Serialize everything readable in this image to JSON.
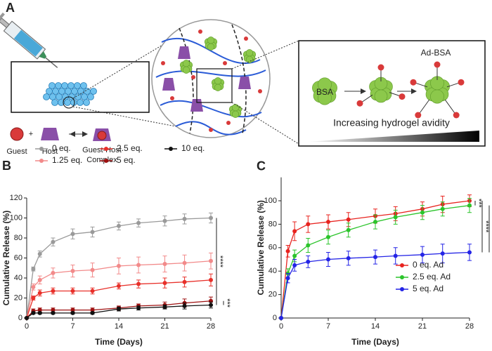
{
  "schematic": {
    "panel_label": "A",
    "guest": "Guest",
    "plus": "+",
    "host": "Host",
    "complex": [
      "Guest-Host",
      "Complex"
    ],
    "bsa": "BSA",
    "ad_bsa": "Ad-BSA",
    "avidity": "Increasing hydrogel avidity"
  },
  "chart_data": [
    {
      "type": "line",
      "panel_label": "B",
      "xlabel": "Time (Days)",
      "ylabel": "Cumulative Release (%)",
      "x": [
        0,
        1,
        2,
        4,
        7,
        10,
        14,
        17,
        21,
        24,
        28
      ],
      "xlim": [
        0,
        28
      ],
      "xticks": [
        0,
        7,
        14,
        21,
        28
      ],
      "ylim": [
        0,
        120
      ],
      "yticks": [
        0,
        20,
        40,
        60,
        80,
        100,
        120
      ],
      "legend": "top",
      "series": [
        {
          "name": "0 eq.",
          "color": "#9a9a9a",
          "values": [
            0,
            49,
            64,
            76,
            84,
            86,
            92,
            95,
            97,
            99,
            100
          ],
          "errors": [
            0,
            2,
            3,
            4,
            5,
            5,
            4,
            4,
            5,
            5,
            5
          ]
        },
        {
          "name": "1.25 eq.",
          "color": "#f28a8a",
          "values": [
            0,
            31,
            38,
            45,
            47,
            48,
            52,
            53,
            54,
            55,
            57
          ],
          "errors": [
            0,
            3,
            4,
            5,
            6,
            7,
            8,
            8,
            8,
            8,
            8
          ]
        },
        {
          "name": "2.5 eq.",
          "color": "#e8302a",
          "values": [
            0,
            20,
            25,
            27,
            27,
            27,
            32,
            34,
            35,
            36,
            38
          ],
          "errors": [
            0,
            2,
            3,
            3,
            3,
            3,
            3,
            4,
            5,
            5,
            6
          ]
        },
        {
          "name": "5 eq.",
          "color": "#9e1010",
          "values": [
            0,
            7,
            8,
            8,
            8,
            8,
            10,
            12,
            13,
            15,
            17
          ],
          "errors": [
            0,
            2,
            2,
            2,
            2,
            2,
            2,
            2,
            3,
            4,
            4
          ]
        },
        {
          "name": "10 eq.",
          "color": "#111111",
          "values": [
            0,
            5,
            5,
            5,
            5,
            5,
            9,
            10,
            11,
            12,
            13
          ],
          "errors": [
            0,
            1,
            1,
            1,
            1,
            1,
            2,
            2,
            2,
            3,
            3
          ]
        }
      ],
      "annotations": [
        "****",
        "***"
      ]
    },
    {
      "type": "line",
      "panel_label": "C",
      "xlabel": "Time (Days)",
      "ylabel": "Cumulative Release (%)",
      "x": [
        0,
        1,
        2,
        4,
        7,
        10,
        14,
        17,
        21,
        24,
        28
      ],
      "xlim": [
        0,
        28
      ],
      "xticks": [
        0,
        7,
        14,
        21,
        28
      ],
      "ylim": [
        0,
        120
      ],
      "yticks": [
        0,
        20,
        40,
        60,
        80,
        100
      ],
      "legend": "lower right",
      "series": [
        {
          "name": "0 eq. Ad",
          "color": "#e8231f",
          "values": [
            0,
            57,
            74,
            80,
            82,
            84,
            87,
            89,
            93,
            97,
            100
          ],
          "errors": [
            0,
            5,
            8,
            7,
            6,
            6,
            6,
            6,
            6,
            7,
            5
          ]
        },
        {
          "name": "2.5 eq. Ad",
          "color": "#2bc42b",
          "values": [
            0,
            38,
            53,
            62,
            69,
            75,
            82,
            86,
            90,
            93,
            96
          ],
          "errors": [
            0,
            4,
            5,
            6,
            6,
            6,
            6,
            6,
            6,
            6,
            6
          ]
        },
        {
          "name": "5 eq. Ad",
          "color": "#2424e6",
          "values": [
            0,
            34,
            45,
            48,
            50,
            51,
            52,
            53,
            54,
            55,
            56
          ],
          "errors": [
            0,
            4,
            5,
            5,
            6,
            6,
            6,
            7,
            7,
            8,
            7
          ]
        }
      ],
      "annotations": [
        "***",
        "****",
        "**"
      ]
    }
  ]
}
